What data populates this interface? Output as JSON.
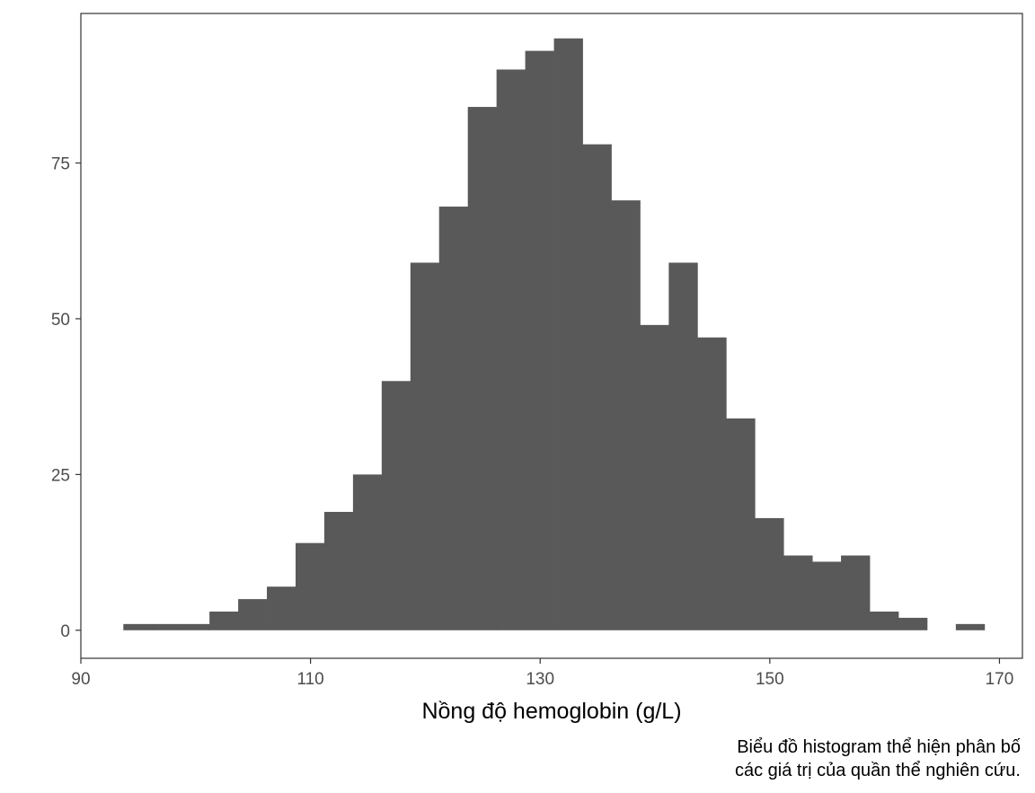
{
  "chart_data": {
    "type": "bar",
    "subtype": "histogram",
    "title": "",
    "xlabel": "Nồng độ hemoglobin (g/L)",
    "ylabel": "",
    "caption": [
      "Biểu đồ histogram thể hiện phân bố",
      "các giá trị của quần thể nghiên cứu."
    ],
    "xlim": [
      90,
      172
    ],
    "ylim": [
      -4.5,
      99
    ],
    "x_ticks": [
      90,
      110,
      130,
      150,
      170
    ],
    "x_tick_labels": [
      "90",
      "110",
      "130",
      "150",
      "170"
    ],
    "y_ticks": [
      0,
      25,
      50,
      75
    ],
    "y_tick_labels": [
      "0",
      "25",
      "50",
      "75"
    ],
    "bin_width": 2.5,
    "bin_starts": [
      93.7,
      96.2,
      98.7,
      101.2,
      103.7,
      106.2,
      108.7,
      111.2,
      113.7,
      116.2,
      118.7,
      121.2,
      123.7,
      126.2,
      128.7,
      131.2,
      133.7,
      136.2,
      138.7,
      141.2,
      143.7,
      146.2,
      148.7,
      151.2,
      153.7,
      156.2,
      158.7,
      161.2,
      163.7,
      166.2
    ],
    "counts": [
      1,
      1,
      1,
      3,
      5,
      7,
      14,
      19,
      25,
      40,
      59,
      68,
      84,
      90,
      93,
      95,
      78,
      69,
      49,
      59,
      47,
      34,
      18,
      12,
      11,
      12,
      3,
      2,
      0,
      1
    ],
    "grid": false,
    "legend": "none",
    "colors": {
      "bar_fill": "#595959",
      "panel_border": "#333333",
      "tick_text": "#4d4d4d",
      "background": "#ffffff"
    }
  }
}
